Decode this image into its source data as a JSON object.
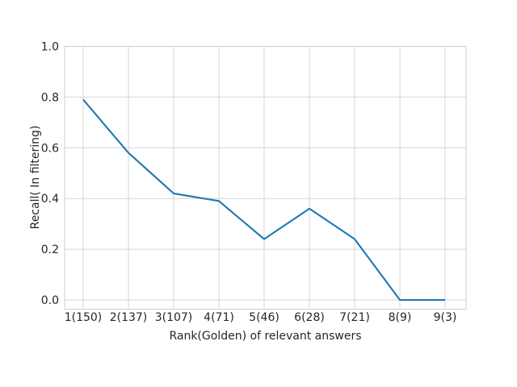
{
  "chart_data": {
    "type": "line",
    "title": "",
    "xlabel": "Rank(Golden) of relevant answers",
    "ylabel": "Recall( In filtering)",
    "categories": [
      "1(150)",
      "2(137)",
      "3(107)",
      "4(71)",
      "5(46)",
      "6(28)",
      "7(21)",
      "8(9)",
      "9(3)"
    ],
    "values": [
      0.79,
      0.58,
      0.42,
      0.39,
      0.24,
      0.36,
      0.24,
      0.0,
      0.0
    ],
    "ytick_labels": [
      "0.0",
      "0.2",
      "0.4",
      "0.6",
      "0.8",
      "1.0"
    ],
    "ylim": [
      -0.04,
      1.0
    ],
    "grid": true,
    "legend": false,
    "colors": {
      "line": "#1f77b4",
      "grid": "#d4d4d4",
      "border": "#cccccc",
      "text": "#262626",
      "background": "#ffffff"
    }
  }
}
